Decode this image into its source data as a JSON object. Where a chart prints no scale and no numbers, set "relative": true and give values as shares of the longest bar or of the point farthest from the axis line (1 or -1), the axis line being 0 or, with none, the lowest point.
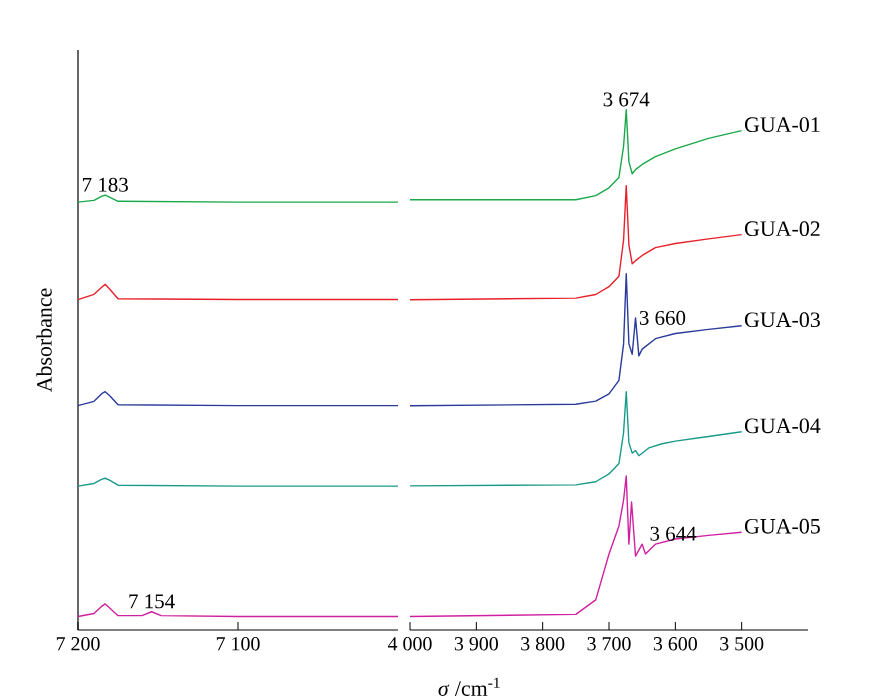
{
  "chart_data": [
    {
      "type": "line",
      "relative": true,
      "ylabel": "Absorbance",
      "xlim": [
        7200,
        7000
      ],
      "xticks": [
        {
          "value": 7200,
          "label": "7 200"
        },
        {
          "value": 7100,
          "label": "7 100"
        }
      ],
      "tick_labels": "x",
      "annotations": [
        {
          "text": "7 183",
          "x": 7183,
          "y": 1.0
        },
        {
          "text": "7 154",
          "x": 7154,
          "y": 0.042
        }
      ],
      "series": [
        {
          "color": "#1aa84a",
          "x": [
            7200,
            7190,
            7185,
            7183,
            7180,
            7175,
            7100,
            7000
          ],
          "values": [
            0.984,
            0.988,
            0.998,
            1.0,
            0.995,
            0.986,
            0.984,
            0.984
          ]
        },
        {
          "color": "#e8202a",
          "x": [
            7200,
            7190,
            7185,
            7183,
            7180,
            7175,
            7100,
            7000
          ],
          "values": [
            0.76,
            0.772,
            0.789,
            0.795,
            0.783,
            0.762,
            0.76,
            0.76
          ]
        },
        {
          "color": "#2a3a9a",
          "x": [
            7200,
            7190,
            7185,
            7183,
            7180,
            7175,
            7100,
            7000
          ],
          "values": [
            0.516,
            0.526,
            0.544,
            0.548,
            0.538,
            0.518,
            0.516,
            0.516
          ]
        },
        {
          "color": "#1a9a8a",
          "x": [
            7200,
            7190,
            7185,
            7183,
            7180,
            7175,
            7100,
            7000
          ],
          "values": [
            0.331,
            0.337,
            0.347,
            0.349,
            0.344,
            0.333,
            0.331,
            0.331
          ]
        },
        {
          "color": "#d020a0",
          "x": [
            7200,
            7190,
            7185,
            7183,
            7180,
            7175,
            7160,
            7154,
            7148,
            7100,
            7000
          ],
          "values": [
            0.031,
            0.038,
            0.055,
            0.06,
            0.05,
            0.033,
            0.033,
            0.042,
            0.033,
            0.031,
            0.031
          ]
        }
      ]
    },
    {
      "type": "line",
      "relative": true,
      "xlabel": "*σ* /cm$^{-1}$",
      "xlim": [
        4000,
        3400
      ],
      "xticks": [
        {
          "value": 4000,
          "label": "4 000"
        },
        {
          "value": 3900,
          "label": "3 900"
        },
        {
          "value": 3800,
          "label": "3 800"
        },
        {
          "value": 3700,
          "label": "3 700"
        },
        {
          "value": 3600,
          "label": "3 600"
        },
        {
          "value": 3500,
          "label": "3 500"
        }
      ],
      "tick_labels": "x",
      "annotations": [
        {
          "text": "3 674",
          "x": 3674,
          "y": 1.0
        },
        {
          "text": "3 660",
          "x": 3660,
          "y": 0.6
        },
        {
          "text": "3 644",
          "x": 3644,
          "y": 0.165
        }
      ],
      "series": [
        {
          "name": "GUA-01",
          "color": "#1aa84a",
          "x": [
            4000,
            3750,
            3720,
            3700,
            3685,
            3678,
            3674,
            3670,
            3665,
            3660,
            3650,
            3630,
            3600,
            3550,
            3500
          ],
          "values": [
            0.827,
            0.827,
            0.835,
            0.85,
            0.87,
            0.93,
            1.0,
            0.9,
            0.877,
            0.885,
            0.895,
            0.91,
            0.925,
            0.945,
            0.96
          ]
        },
        {
          "name": "GUA-02",
          "color": "#e8202a",
          "x": [
            4000,
            3750,
            3720,
            3700,
            3685,
            3678,
            3674,
            3670,
            3665,
            3660,
            3650,
            3630,
            3600,
            3550,
            3500
          ],
          "values": [
            0.635,
            0.638,
            0.645,
            0.66,
            0.68,
            0.75,
            0.854,
            0.74,
            0.704,
            0.71,
            0.72,
            0.735,
            0.743,
            0.752,
            0.76
          ]
        },
        {
          "name": "GUA-03",
          "color": "#2a3a9a",
          "x": [
            4000,
            3750,
            3720,
            3700,
            3685,
            3678,
            3674,
            3670,
            3665,
            3660,
            3655,
            3650,
            3630,
            3600,
            3550,
            3500
          ],
          "values": [
            0.431,
            0.434,
            0.44,
            0.454,
            0.48,
            0.55,
            0.685,
            0.55,
            0.53,
            0.6,
            0.527,
            0.54,
            0.56,
            0.57,
            0.578,
            0.585
          ]
        },
        {
          "name": "GUA-04",
          "color": "#1a9a8a",
          "x": [
            4000,
            3750,
            3720,
            3700,
            3685,
            3678,
            3674,
            3670,
            3665,
            3660,
            3655,
            3640,
            3620,
            3600,
            3550,
            3500
          ],
          "values": [
            0.277,
            0.279,
            0.285,
            0.3,
            0.32,
            0.38,
            0.458,
            0.36,
            0.34,
            0.345,
            0.335,
            0.35,
            0.358,
            0.363,
            0.372,
            0.381
          ]
        },
        {
          "name": "GUA-05",
          "color": "#d020a0",
          "x": [
            4000,
            3750,
            3720,
            3700,
            3685,
            3678,
            3674,
            3670,
            3666,
            3660,
            3650,
            3645,
            3630,
            3600,
            3550,
            3500
          ],
          "values": [
            0.026,
            0.03,
            0.058,
            0.146,
            0.2,
            0.25,
            0.296,
            0.165,
            0.246,
            0.142,
            0.165,
            0.146,
            0.165,
            0.175,
            0.182,
            0.188
          ]
        }
      ]
    }
  ]
}
